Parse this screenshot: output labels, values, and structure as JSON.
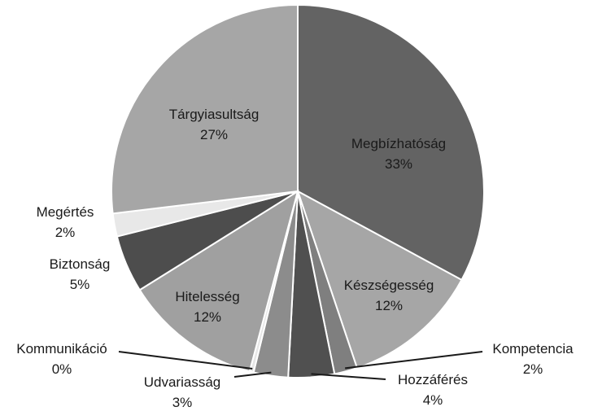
{
  "chart_data": {
    "type": "pie",
    "title": "",
    "slices": [
      {
        "label": "Megbízhatóság",
        "value": 33,
        "display": "33%",
        "color": "#636363"
      },
      {
        "label": "Készségesség",
        "value": 12,
        "display": "12%",
        "color": "#a6a6a6"
      },
      {
        "label": "Kompetencia",
        "value": 2,
        "display": "2%",
        "color": "#7f7f7f"
      },
      {
        "label": "Hozzáférés",
        "value": 4,
        "display": "4%",
        "color": "#505050"
      },
      {
        "label": "Udvariasság",
        "value": 3,
        "display": "3%",
        "color": "#8c8c8c"
      },
      {
        "label": "Kommunikáció",
        "value": 0,
        "display": "0%",
        "color": "#e6e6e6"
      },
      {
        "label": "Hitelesség",
        "value": 12,
        "display": "12%",
        "color": "#a0a0a0"
      },
      {
        "label": "Biztonság",
        "value": 5,
        "display": "5%",
        "color": "#4d4d4d"
      },
      {
        "label": "Megértés",
        "value": 2,
        "display": "2%",
        "color": "#e8e8e8"
      },
      {
        "label": "Tárgyiasultság",
        "value": 27,
        "display": "27%",
        "color": "#a6a6a6"
      }
    ]
  }
}
